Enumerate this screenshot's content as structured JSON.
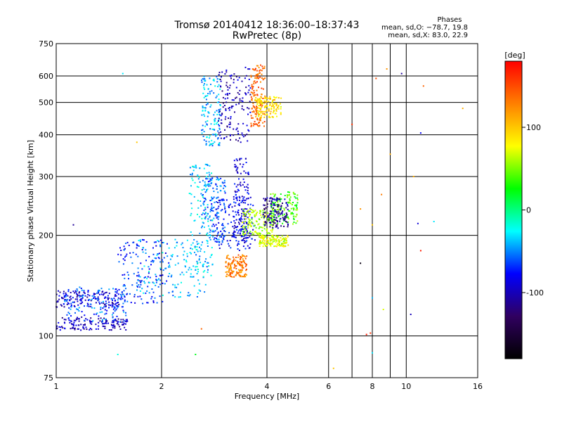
{
  "chart_data": {
    "type": "scatter",
    "title": "Tromsø 20140412 18:36:00–18:37:43",
    "subtitle": "RwPretec (8p)",
    "xlabel": "Frequency [MHz]",
    "ylabel": "Stationary phase Virtual Height [km]",
    "x_scale": "log",
    "y_scale": "log",
    "xlim": [
      1,
      16
    ],
    "ylim": [
      75,
      750
    ],
    "x_ticks": [
      1,
      2,
      4,
      6,
      8,
      10,
      16
    ],
    "x_minor_ticks": [
      7,
      9
    ],
    "y_ticks": [
      75,
      100,
      200,
      300,
      400,
      500,
      600,
      750
    ],
    "grid": true,
    "legend": {
      "heading": "Phases",
      "lines": [
        "mean, sd,O: −78.7, 19.8",
        "mean, sd,X: 83.0, 22.9"
      ]
    },
    "colorbar": {
      "label": "[deg]",
      "range": [
        -180,
        180
      ],
      "ticks": [
        100,
        0,
        -100
      ],
      "colors": [
        "#ff0000",
        "#ff8000",
        "#ffff00",
        "#00ff00",
        "#00ffff",
        "#0000ff",
        "#300060",
        "#000000"
      ]
    },
    "series": [
      {
        "shape": "band",
        "x": [
          1.0,
          1.6
        ],
        "y": [
          104,
          114
        ],
        "phase": -100
      },
      {
        "shape": "band",
        "x": [
          1.0,
          1.55
        ],
        "y": [
          122,
          137
        ],
        "phase": -95
      },
      {
        "shape": "band",
        "x": [
          1.05,
          1.6
        ],
        "y": [
          110,
          140
        ],
        "phase": -60
      },
      {
        "shape": "band",
        "x": [
          1.5,
          2.1
        ],
        "y": [
          125,
          195
        ],
        "phase": -70
      },
      {
        "shape": "band",
        "x": [
          1.7,
          2.7
        ],
        "y": [
          130,
          195
        ],
        "phase": -40
      },
      {
        "shape": "band",
        "x": [
          2.4,
          2.8
        ],
        "y": [
          150,
          330
        ],
        "phase": -35
      },
      {
        "shape": "band",
        "x": [
          2.6,
          3.05
        ],
        "y": [
          190,
          300
        ],
        "phase": -55
      },
      {
        "shape": "band",
        "x": [
          2.85,
          3.7
        ],
        "y": [
          180,
          260
        ],
        "phase": -80
      },
      {
        "shape": "band",
        "x": [
          3.2,
          3.55
        ],
        "y": [
          190,
          340
        ],
        "phase": -90
      },
      {
        "shape": "band",
        "x": [
          3.05,
          3.5
        ],
        "y": [
          150,
          175
        ],
        "phase": 130
      },
      {
        "shape": "band",
        "x": [
          3.4,
          4.2
        ],
        "y": [
          200,
          240
        ],
        "phase": 60
      },
      {
        "shape": "band",
        "x": [
          3.8,
          4.6
        ],
        "y": [
          185,
          200
        ],
        "phase": 70
      },
      {
        "shape": "band",
        "x": [
          4.1,
          4.9
        ],
        "y": [
          215,
          270
        ],
        "phase": 40
      },
      {
        "shape": "band",
        "x": [
          3.9,
          4.6
        ],
        "y": [
          210,
          260
        ],
        "phase": -110
      },
      {
        "shape": "band",
        "x": [
          2.6,
          2.95
        ],
        "y": [
          370,
          600
        ],
        "phase": -40
      },
      {
        "shape": "band",
        "x": [
          2.9,
          3.6
        ],
        "y": [
          380,
          640
        ],
        "phase": -100
      },
      {
        "shape": "band",
        "x": [
          3.6,
          3.95
        ],
        "y": [
          420,
          650
        ],
        "phase": 140
      },
      {
        "shape": "band",
        "x": [
          3.7,
          4.4
        ],
        "y": [
          450,
          520
        ],
        "phase": 90
      }
    ],
    "scattered_points": [
      {
        "x": 1.55,
        "y": 610,
        "phase": -30
      },
      {
        "x": 1.12,
        "y": 215,
        "phase": -110
      },
      {
        "x": 1.7,
        "y": 380,
        "phase": 100
      },
      {
        "x": 2.5,
        "y": 88,
        "phase": 20
      },
      {
        "x": 1.5,
        "y": 88,
        "phase": -20
      },
      {
        "x": 7.0,
        "y": 430,
        "phase": 160
      },
      {
        "x": 7.4,
        "y": 240,
        "phase": 120
      },
      {
        "x": 8.2,
        "y": 590,
        "phase": 150
      },
      {
        "x": 8.8,
        "y": 630,
        "phase": 120
      },
      {
        "x": 9.0,
        "y": 350,
        "phase": 110
      },
      {
        "x": 9.7,
        "y": 610,
        "phase": -110
      },
      {
        "x": 11.2,
        "y": 560,
        "phase": 140
      },
      {
        "x": 11.0,
        "y": 405,
        "phase": -80
      },
      {
        "x": 10.5,
        "y": 300,
        "phase": 110
      },
      {
        "x": 8.5,
        "y": 265,
        "phase": 130
      },
      {
        "x": 8.0,
        "y": 215,
        "phase": 100
      },
      {
        "x": 10.8,
        "y": 217,
        "phase": -90
      },
      {
        "x": 12.0,
        "y": 220,
        "phase": -30
      },
      {
        "x": 11.0,
        "y": 180,
        "phase": 170
      },
      {
        "x": 7.4,
        "y": 165,
        "phase": -170
      },
      {
        "x": 8.0,
        "y": 130,
        "phase": -40
      },
      {
        "x": 8.6,
        "y": 120,
        "phase": 70
      },
      {
        "x": 10.3,
        "y": 116,
        "phase": -100
      },
      {
        "x": 7.9,
        "y": 102,
        "phase": 160
      },
      {
        "x": 7.7,
        "y": 101,
        "phase": 170
      },
      {
        "x": 8.0,
        "y": 89,
        "phase": -30
      },
      {
        "x": 6.2,
        "y": 80,
        "phase": 100
      },
      {
        "x": 14.5,
        "y": 480,
        "phase": 110
      },
      {
        "x": 2.6,
        "y": 105,
        "phase": 140
      }
    ]
  }
}
